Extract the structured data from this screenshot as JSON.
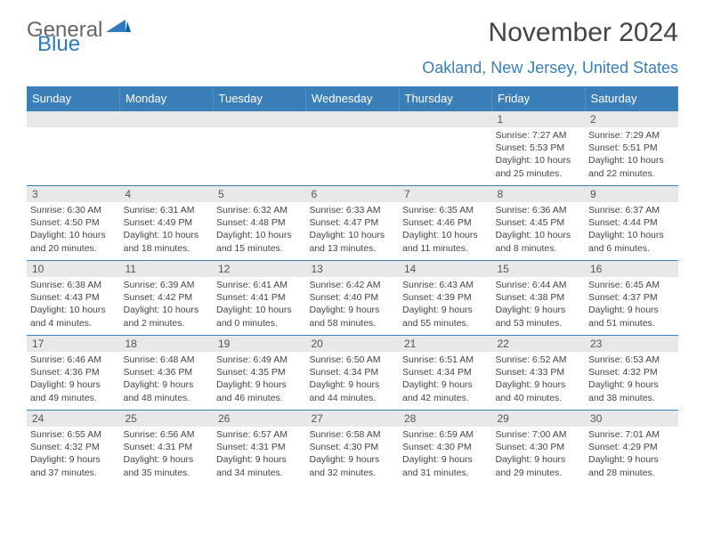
{
  "logo": {
    "general": "General",
    "blue": "Blue"
  },
  "title": "November 2024",
  "location": "Oakland, New Jersey, United States",
  "columns": [
    "Sunday",
    "Monday",
    "Tuesday",
    "Wednesday",
    "Thursday",
    "Friday",
    "Saturday"
  ],
  "colors": {
    "header_bg": "#3a7fb8",
    "header_text": "#ffffff",
    "daynum_bg": "#e8e8e8",
    "border": "#3a7fb8",
    "location_text": "#3a7fb8"
  },
  "weeks": [
    [
      {
        "day": "",
        "sunrise": "",
        "sunset": "",
        "daylight": ""
      },
      {
        "day": "",
        "sunrise": "",
        "sunset": "",
        "daylight": ""
      },
      {
        "day": "",
        "sunrise": "",
        "sunset": "",
        "daylight": ""
      },
      {
        "day": "",
        "sunrise": "",
        "sunset": "",
        "daylight": ""
      },
      {
        "day": "",
        "sunrise": "",
        "sunset": "",
        "daylight": ""
      },
      {
        "day": "1",
        "sunrise": "Sunrise: 7:27 AM",
        "sunset": "Sunset: 5:53 PM",
        "daylight": "Daylight: 10 hours and 25 minutes."
      },
      {
        "day": "2",
        "sunrise": "Sunrise: 7:29 AM",
        "sunset": "Sunset: 5:51 PM",
        "daylight": "Daylight: 10 hours and 22 minutes."
      }
    ],
    [
      {
        "day": "3",
        "sunrise": "Sunrise: 6:30 AM",
        "sunset": "Sunset: 4:50 PM",
        "daylight": "Daylight: 10 hours and 20 minutes."
      },
      {
        "day": "4",
        "sunrise": "Sunrise: 6:31 AM",
        "sunset": "Sunset: 4:49 PM",
        "daylight": "Daylight: 10 hours and 18 minutes."
      },
      {
        "day": "5",
        "sunrise": "Sunrise: 6:32 AM",
        "sunset": "Sunset: 4:48 PM",
        "daylight": "Daylight: 10 hours and 15 minutes."
      },
      {
        "day": "6",
        "sunrise": "Sunrise: 6:33 AM",
        "sunset": "Sunset: 4:47 PM",
        "daylight": "Daylight: 10 hours and 13 minutes."
      },
      {
        "day": "7",
        "sunrise": "Sunrise: 6:35 AM",
        "sunset": "Sunset: 4:46 PM",
        "daylight": "Daylight: 10 hours and 11 minutes."
      },
      {
        "day": "8",
        "sunrise": "Sunrise: 6:36 AM",
        "sunset": "Sunset: 4:45 PM",
        "daylight": "Daylight: 10 hours and 8 minutes."
      },
      {
        "day": "9",
        "sunrise": "Sunrise: 6:37 AM",
        "sunset": "Sunset: 4:44 PM",
        "daylight": "Daylight: 10 hours and 6 minutes."
      }
    ],
    [
      {
        "day": "10",
        "sunrise": "Sunrise: 6:38 AM",
        "sunset": "Sunset: 4:43 PM",
        "daylight": "Daylight: 10 hours and 4 minutes."
      },
      {
        "day": "11",
        "sunrise": "Sunrise: 6:39 AM",
        "sunset": "Sunset: 4:42 PM",
        "daylight": "Daylight: 10 hours and 2 minutes."
      },
      {
        "day": "12",
        "sunrise": "Sunrise: 6:41 AM",
        "sunset": "Sunset: 4:41 PM",
        "daylight": "Daylight: 10 hours and 0 minutes."
      },
      {
        "day": "13",
        "sunrise": "Sunrise: 6:42 AM",
        "sunset": "Sunset: 4:40 PM",
        "daylight": "Daylight: 9 hours and 58 minutes."
      },
      {
        "day": "14",
        "sunrise": "Sunrise: 6:43 AM",
        "sunset": "Sunset: 4:39 PM",
        "daylight": "Daylight: 9 hours and 55 minutes."
      },
      {
        "day": "15",
        "sunrise": "Sunrise: 6:44 AM",
        "sunset": "Sunset: 4:38 PM",
        "daylight": "Daylight: 9 hours and 53 minutes."
      },
      {
        "day": "16",
        "sunrise": "Sunrise: 6:45 AM",
        "sunset": "Sunset: 4:37 PM",
        "daylight": "Daylight: 9 hours and 51 minutes."
      }
    ],
    [
      {
        "day": "17",
        "sunrise": "Sunrise: 6:46 AM",
        "sunset": "Sunset: 4:36 PM",
        "daylight": "Daylight: 9 hours and 49 minutes."
      },
      {
        "day": "18",
        "sunrise": "Sunrise: 6:48 AM",
        "sunset": "Sunset: 4:36 PM",
        "daylight": "Daylight: 9 hours and 48 minutes."
      },
      {
        "day": "19",
        "sunrise": "Sunrise: 6:49 AM",
        "sunset": "Sunset: 4:35 PM",
        "daylight": "Daylight: 9 hours and 46 minutes."
      },
      {
        "day": "20",
        "sunrise": "Sunrise: 6:50 AM",
        "sunset": "Sunset: 4:34 PM",
        "daylight": "Daylight: 9 hours and 44 minutes."
      },
      {
        "day": "21",
        "sunrise": "Sunrise: 6:51 AM",
        "sunset": "Sunset: 4:34 PM",
        "daylight": "Daylight: 9 hours and 42 minutes."
      },
      {
        "day": "22",
        "sunrise": "Sunrise: 6:52 AM",
        "sunset": "Sunset: 4:33 PM",
        "daylight": "Daylight: 9 hours and 40 minutes."
      },
      {
        "day": "23",
        "sunrise": "Sunrise: 6:53 AM",
        "sunset": "Sunset: 4:32 PM",
        "daylight": "Daylight: 9 hours and 38 minutes."
      }
    ],
    [
      {
        "day": "24",
        "sunrise": "Sunrise: 6:55 AM",
        "sunset": "Sunset: 4:32 PM",
        "daylight": "Daylight: 9 hours and 37 minutes."
      },
      {
        "day": "25",
        "sunrise": "Sunrise: 6:56 AM",
        "sunset": "Sunset: 4:31 PM",
        "daylight": "Daylight: 9 hours and 35 minutes."
      },
      {
        "day": "26",
        "sunrise": "Sunrise: 6:57 AM",
        "sunset": "Sunset: 4:31 PM",
        "daylight": "Daylight: 9 hours and 34 minutes."
      },
      {
        "day": "27",
        "sunrise": "Sunrise: 6:58 AM",
        "sunset": "Sunset: 4:30 PM",
        "daylight": "Daylight: 9 hours and 32 minutes."
      },
      {
        "day": "28",
        "sunrise": "Sunrise: 6:59 AM",
        "sunset": "Sunset: 4:30 PM",
        "daylight": "Daylight: 9 hours and 31 minutes."
      },
      {
        "day": "29",
        "sunrise": "Sunrise: 7:00 AM",
        "sunset": "Sunset: 4:30 PM",
        "daylight": "Daylight: 9 hours and 29 minutes."
      },
      {
        "day": "30",
        "sunrise": "Sunrise: 7:01 AM",
        "sunset": "Sunset: 4:29 PM",
        "daylight": "Daylight: 9 hours and 28 minutes."
      }
    ]
  ]
}
